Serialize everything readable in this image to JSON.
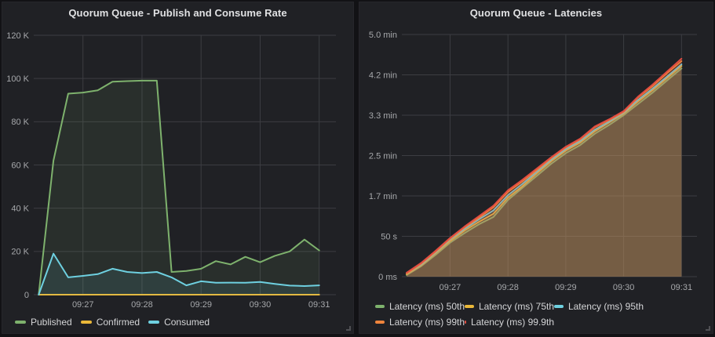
{
  "chart_data": [
    {
      "type": "area",
      "title": "Quorum Queue - Publish and Consume Rate",
      "legend_position": "bottom",
      "grid": true,
      "t_zero": "09:26:00",
      "x_domain_sec": [
        10,
        317
      ],
      "x_ticks": [
        {
          "sec": 60,
          "label": "09:27"
        },
        {
          "sec": 120,
          "label": "09:28"
        },
        {
          "sec": 180,
          "label": "09:29"
        },
        {
          "sec": 240,
          "label": "09:30"
        },
        {
          "sec": 300,
          "label": "09:31"
        }
      ],
      "ylim": [
        0,
        120
      ],
      "y_value_unit": "thousands (K) of messages/s",
      "y_ticks": [
        {
          "v": 0,
          "label": "0"
        },
        {
          "v": 20,
          "label": "20 K"
        },
        {
          "v": 40,
          "label": "40 K"
        },
        {
          "v": 60,
          "label": "60 K"
        },
        {
          "v": 80,
          "label": "80 K"
        },
        {
          "v": 100,
          "label": "100 K"
        },
        {
          "v": 120,
          "label": "120 K"
        }
      ],
      "sample_start_sec": 15,
      "sample_step_sec": 15,
      "series": [
        {
          "name": "Published",
          "color": "#7EB26D",
          "values": [
            0,
            62,
            93,
            93.5,
            94.5,
            98.5,
            98.8,
            99,
            99,
            10.5,
            11,
            12,
            15.5,
            14,
            17.5,
            15,
            18,
            20,
            25.5,
            20.5
          ]
        },
        {
          "name": "Confirmed",
          "color": "#EAB839",
          "values": [
            0,
            0,
            0,
            0,
            0,
            0,
            0,
            0,
            0,
            0,
            0,
            0,
            0,
            0,
            0,
            0,
            0,
            0,
            0,
            0
          ]
        },
        {
          "name": "Consumed",
          "color": "#6ED0E0",
          "values": [
            0,
            19,
            8,
            8.7,
            9.5,
            12,
            10.5,
            10,
            10.5,
            8,
            4.3,
            6.2,
            5.5,
            5.6,
            5.5,
            5.9,
            5,
            4.2,
            4,
            4.3
          ]
        }
      ]
    },
    {
      "type": "area",
      "title": "Quorum Queue - Latencies",
      "legend_position": "bottom",
      "grid": true,
      "t_zero": "09:26:00",
      "x_domain_sec": [
        10,
        316
      ],
      "x_ticks": [
        {
          "sec": 60,
          "label": "09:27"
        },
        {
          "sec": 120,
          "label": "09:28"
        },
        {
          "sec": 180,
          "label": "09:29"
        },
        {
          "sec": 240,
          "label": "09:30"
        },
        {
          "sec": 300,
          "label": "09:31"
        }
      ],
      "ylim": [
        0,
        300
      ],
      "y_value_unit": "seconds",
      "y_ticks": [
        {
          "v": 0,
          "label": "0 ms"
        },
        {
          "v": 50,
          "label": "50 s"
        },
        {
          "v": 100,
          "label": "1.7 min"
        },
        {
          "v": 150,
          "label": "2.5 min"
        },
        {
          "v": 200,
          "label": "3.3 min"
        },
        {
          "v": 250,
          "label": "4.2 min"
        },
        {
          "v": 300,
          "label": "5.0 min"
        }
      ],
      "sample_start_sec": 15,
      "sample_step_sec": 15,
      "series": [
        {
          "name": "Latency (ms) 50th",
          "color": "#7EB26D",
          "values": [
            2,
            13,
            27,
            42,
            54,
            65,
            74,
            95,
            110,
            125,
            140,
            153,
            163,
            177,
            188,
            200,
            214,
            228,
            243,
            258
          ]
        },
        {
          "name": "Latency (ms) 75th",
          "color": "#EAB839",
          "values": [
            3,
            14,
            29,
            44,
            57,
            68,
            78,
            98,
            112,
            128,
            143,
            156,
            166,
            180,
            191,
            202,
            217,
            231,
            246,
            261
          ]
        },
        {
          "name": "Latency (ms) 95th",
          "color": "#6ED0E0",
          "values": [
            4,
            15,
            30,
            46,
            59,
            71,
            82,
            101,
            115,
            130,
            145,
            158,
            168,
            182,
            192,
            203,
            219,
            233,
            248,
            263
          ]
        },
        {
          "name": "Latency (ms) 99th",
          "color": "#EF843C",
          "values": [
            4,
            16,
            31,
            47,
            61,
            73,
            86,
            105,
            118,
            132,
            147,
            160,
            170,
            185,
            194,
            204,
            222,
            236,
            252,
            267
          ]
        },
        {
          "name": "Latency (ms) 99.9th",
          "color": "#E24D42",
          "values": [
            5,
            17,
            32,
            48,
            62,
            75,
            88,
            107,
            120,
            134,
            148,
            161,
            171,
            186,
            195,
            205,
            223,
            238,
            254,
            270
          ]
        }
      ]
    }
  ]
}
